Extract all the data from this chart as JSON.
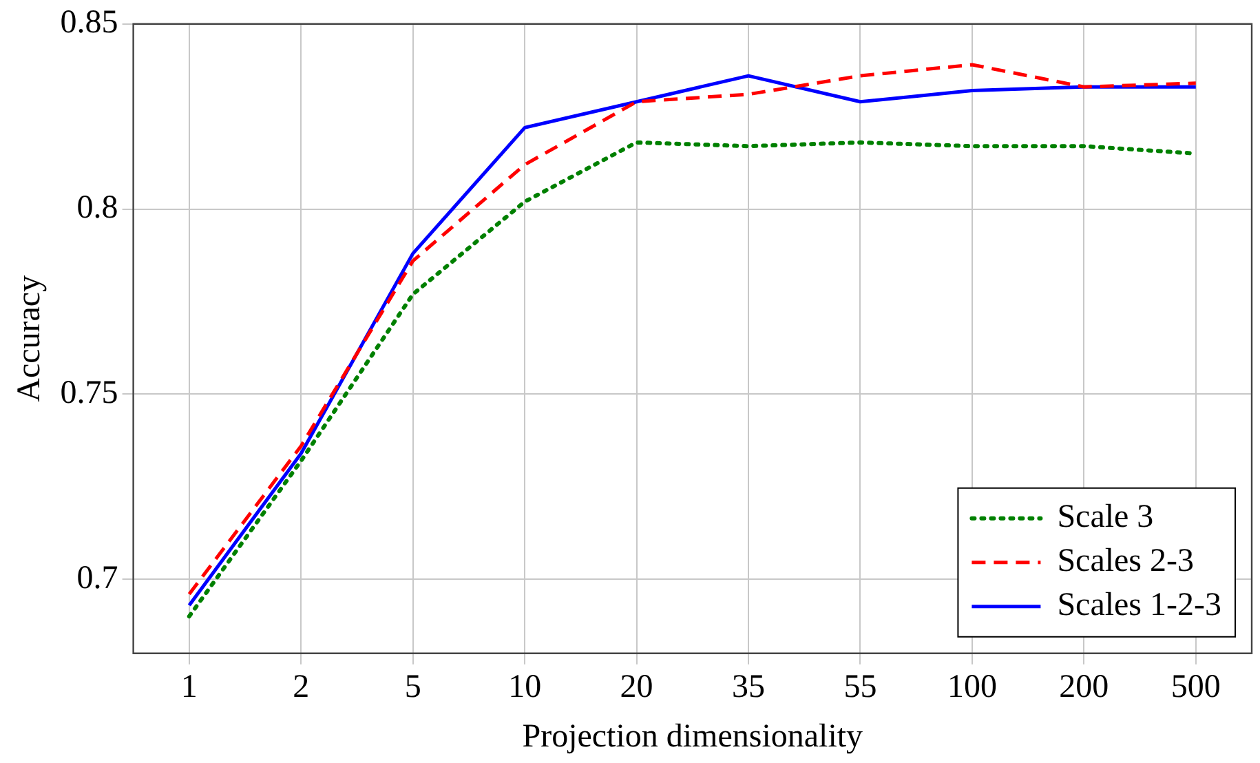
{
  "chart_data": {
    "type": "line",
    "xlabel": "Projection dimensionality",
    "ylabel": "Accuracy",
    "categories": [
      "1",
      "2",
      "5",
      "10",
      "20",
      "35",
      "55",
      "100",
      "200",
      "500"
    ],
    "series": [
      {
        "name": "Scale 3",
        "color": "#008000",
        "line_style": "dotted",
        "values": [
          0.69,
          0.732,
          0.777,
          0.802,
          0.818,
          0.817,
          0.818,
          0.817,
          0.817,
          0.815
        ]
      },
      {
        "name": "Scales 2-3",
        "color": "#ff0000",
        "line_style": "dashed",
        "values": [
          0.696,
          0.736,
          0.786,
          0.812,
          0.829,
          0.831,
          0.836,
          0.839,
          0.833,
          0.834
        ]
      },
      {
        "name": "Scales 1-2-3",
        "color": "#0000ff",
        "line_style": "solid",
        "values": [
          0.693,
          0.734,
          0.788,
          0.822,
          0.829,
          0.836,
          0.829,
          0.832,
          0.833,
          0.833
        ]
      }
    ],
    "ylim": [
      0.68,
      0.85
    ],
    "yticks": [
      0.7,
      0.75,
      0.8,
      0.85
    ],
    "grid": true,
    "legend": "bottom right",
    "marker": "none"
  }
}
